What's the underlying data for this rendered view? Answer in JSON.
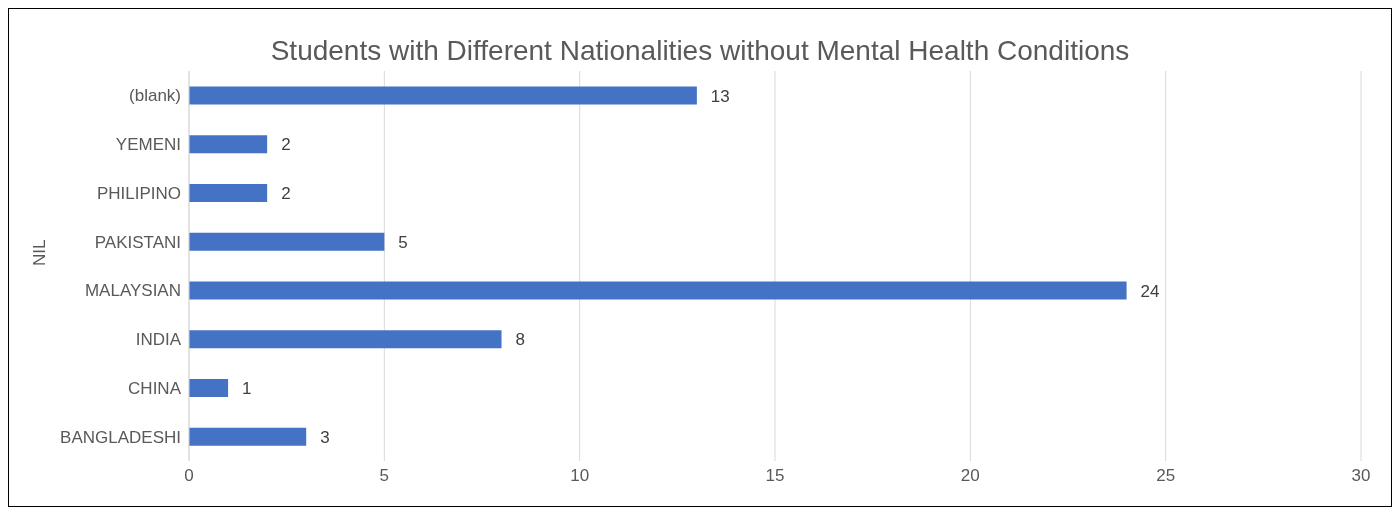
{
  "chart_data": {
    "type": "bar",
    "orientation": "horizontal",
    "title": "Students with Different Nationalities without Mental Health Conditions",
    "ylabel": "NIL",
    "categories": [
      "(blank)",
      "YEMENI",
      "PHILIPINO",
      "PAKISTANI",
      "MALAYSIAN",
      "INDIA",
      "CHINA",
      "BANGLADESHI"
    ],
    "values": [
      13,
      2,
      2,
      5,
      24,
      8,
      1,
      3
    ],
    "color": "#4472c4",
    "xlim": [
      0,
      30
    ],
    "xticks": [
      0,
      5,
      10,
      15,
      20,
      25,
      30
    ],
    "grid": "x",
    "data_labels": true
  }
}
